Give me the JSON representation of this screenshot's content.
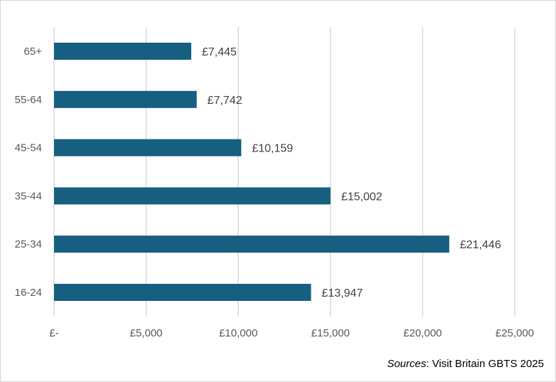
{
  "chart_data": {
    "type": "bar",
    "orientation": "horizontal",
    "title": "",
    "xlabel": "",
    "ylabel": "",
    "categories": [
      "65+",
      "55-64",
      "45-54",
      "35-44",
      "25-34",
      "16-24"
    ],
    "values": [
      7445,
      7742,
      10159,
      15002,
      21446,
      13947
    ],
    "data_labels": [
      "£7,445",
      "£7,742",
      "£10,159",
      "£15,002",
      "£21,446",
      "£13,947"
    ],
    "xlim": [
      0,
      25000
    ],
    "xticks": [
      0,
      5000,
      10000,
      15000,
      20000,
      25000
    ],
    "xtick_labels": [
      "£-",
      "£5,000",
      "£10,000",
      "£15,000",
      "£20,000",
      "£25,000"
    ],
    "grid": "vertical",
    "bar_color": "#165f80",
    "legend": "none"
  },
  "source": {
    "label": "Sources",
    "text": ": Visit Britain GBTS 2025"
  }
}
